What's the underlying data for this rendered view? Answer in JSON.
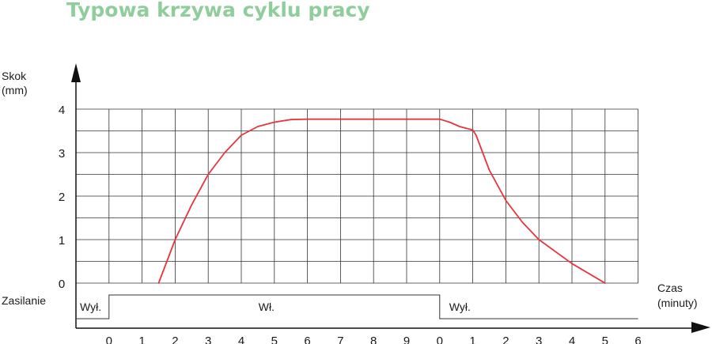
{
  "chart_data": {
    "type": "line",
    "title": "Typowa krzywa cyklu pracy",
    "ylabel": [
      "Skok",
      "(mm)"
    ],
    "xlabel": [
      "Czas",
      "(minuty)"
    ],
    "ylim": [
      0,
      4
    ],
    "y_ticks": [
      "0",
      "1",
      "2",
      "3",
      "4"
    ],
    "x_ticks": [
      "0",
      "1",
      "2",
      "3",
      "4",
      "5",
      "6",
      "7",
      "8",
      "9",
      "0",
      "1",
      "2",
      "3",
      "4",
      "5",
      "6"
    ],
    "grid": true,
    "series": [
      {
        "color": "#e8343c",
        "x": [
          1.5,
          2.0,
          2.5,
          3.0,
          3.5,
          4.0,
          4.5,
          5.0,
          5.5,
          6.0,
          7.0,
          8.0,
          9.0,
          10.0,
          10.3,
          10.6,
          11.0,
          11.1,
          11.5,
          12.0,
          12.5,
          13.0,
          14.0,
          15.0
        ],
        "y": [
          0.0,
          1.0,
          1.8,
          2.5,
          3.0,
          3.4,
          3.6,
          3.7,
          3.76,
          3.77,
          3.77,
          3.77,
          3.77,
          3.77,
          3.7,
          3.6,
          3.52,
          3.4,
          2.6,
          1.9,
          1.4,
          1.0,
          0.45,
          0.0
        ]
      }
    ],
    "power": {
      "label": "Zasilanie",
      "segments": [
        {
          "label": "Wył.",
          "state": "off",
          "from": -1,
          "to": 0
        },
        {
          "label": "Wł.",
          "state": "on",
          "from": 0,
          "to": 10
        },
        {
          "label": "Wył.",
          "state": "off",
          "from": 10,
          "to": 16
        }
      ]
    }
  }
}
